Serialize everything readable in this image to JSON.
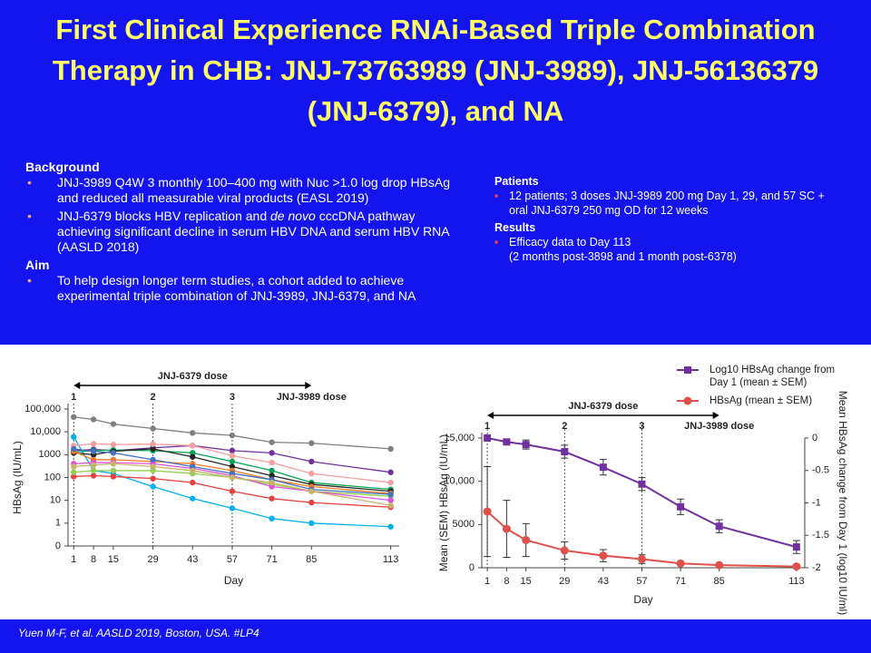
{
  "title": "First Clinical Experience RNAi-Based Triple Combination Therapy in CHB: JNJ-73763989 (JNJ-3989), JNJ-56136379 (JNJ-6379), and NA",
  "left_panel": [
    {
      "heading": "Background",
      "items": [
        [
          [
            "JNJ-3989 Q4W 3 monthly  100–400 mg with Nuc >1.0 log drop HBsAg"
          ],
          [
            "and reduced all measurable viral products (EASL 2019)"
          ]
        ],
        [
          [
            "JNJ-6379 blocks HBV replication and ",
            {
              "italic": "de novo"
            },
            " cccDNA pathway achieving significant decline in serum HBV DNA and serum HBV RNA (AASLD 2018)"
          ]
        ]
      ]
    },
    {
      "heading": "Aim",
      "items": [
        [
          [
            "To help design longer term studies, a cohort added to achieve experimental triple combination of JNJ-3989, JNJ-6379, and NA"
          ]
        ]
      ]
    }
  ],
  "right_panel": [
    {
      "heading": "Patients",
      "items": [
        [
          [
            "12 patients; 3 doses JNJ-3989 200 mg Day 1, 29, and 57 SC + oral JNJ-6379 250 mg OD for 12 weeks"
          ]
        ]
      ]
    },
    {
      "heading": "Results",
      "items": [
        [
          [
            "Efficacy data to Day 113"
          ],
          [
            "(2 months post-3898 and 1 month post-6378)"
          ]
        ]
      ]
    }
  ],
  "footer": "Yuen M-F,  et al. AASLD 2019, Boston, USA. #LP4",
  "chart_data": [
    {
      "type": "line",
      "x_label": "Day",
      "y_label": "HBsAg (IU/mL)",
      "yscale": "log",
      "x": [
        1,
        8,
        15,
        29,
        43,
        57,
        71,
        85,
        113
      ],
      "xlim": [
        -1,
        116
      ],
      "xticks": [
        1,
        8,
        15,
        29,
        43,
        57,
        71,
        85,
        113
      ],
      "ylim": [
        0.1,
        100000
      ],
      "yticks": [
        {
          "value": 0.1,
          "label": "0"
        },
        1,
        10,
        100,
        1000,
        {
          "value": 10000,
          "label": "10,000"
        },
        {
          "value": 100000,
          "label": "100,000"
        }
      ],
      "arrow_label": "JNJ-6379 dose",
      "arrow_x": [
        1,
        85
      ],
      "marker_label": "JNJ-3989 dose",
      "dose_markers": [
        {
          "label": "1",
          "x": 1
        },
        {
          "label": "2",
          "x": 29
        },
        {
          "label": "3",
          "x": 57
        }
      ],
      "series": [
        {
          "color": "#7f7f7f",
          "values": [
            45000,
            35000,
            22000,
            14000,
            9000,
            7000,
            3500,
            3200,
            1800
          ]
        },
        {
          "color": "#7030a0",
          "values": [
            1500,
            1700,
            1500,
            2000,
            2500,
            1500,
            1200,
            500,
            170
          ]
        },
        {
          "color": "#00b0f0",
          "values": [
            6000,
            200,
            150,
            40,
            12,
            4.5,
            1.6,
            1,
            0.7
          ]
        },
        {
          "color": "#e8403c",
          "values": [
            110,
            120,
            110,
            90,
            60,
            25,
            12,
            8,
            5
          ]
        },
        {
          "color": "#00a651",
          "values": [
            1300,
            1500,
            1600,
            1500,
            1200,
            500,
            200,
            60,
            30
          ]
        },
        {
          "color": "#262626",
          "values": [
            1200,
            1000,
            1400,
            1800,
            800,
            300,
            120,
            50,
            25
          ]
        },
        {
          "color": "#f4a0a0",
          "values": [
            2500,
            3000,
            2800,
            2900,
            2500,
            900,
            450,
            150,
            60
          ]
        },
        {
          "color": "#f47a20",
          "values": [
            1400,
            600,
            600,
            500,
            400,
            200,
            80,
            40,
            20
          ]
        },
        {
          "color": "#92d050",
          "values": [
            170,
            200,
            200,
            200,
            150,
            100,
            50,
            25,
            15
          ]
        },
        {
          "color": "#e050e0",
          "values": [
            400,
            450,
            450,
            400,
            250,
            120,
            40,
            25,
            10
          ]
        },
        {
          "color": "#4472c4",
          "values": [
            1800,
            1400,
            1200,
            600,
            300,
            150,
            80,
            30,
            18
          ]
        },
        {
          "color": "#c8b464",
          "values": [
            300,
            350,
            400,
            300,
            200,
            100,
            60,
            25,
            6
          ]
        }
      ]
    },
    {
      "type": "line",
      "x_label": "Day",
      "y_label": "Mean (SEM) HBsAg (IU/mL)",
      "y2_label": "Mean HBsAg change from Day 1 (log10 IU/ml)",
      "x": [
        1,
        8,
        15,
        29,
        43,
        57,
        71,
        85,
        113
      ],
      "xlim": [
        -1,
        116
      ],
      "xticks": [
        1,
        8,
        15,
        29,
        43,
        57,
        71,
        85,
        113
      ],
      "ylim": [
        0,
        15000
      ],
      "yticks": [
        0,
        5000,
        {
          "value": 10000,
          "label": "10,000"
        },
        {
          "value": 15000,
          "label": "15,000"
        }
      ],
      "y2lim": [
        -2,
        0
      ],
      "y2ticks": [
        0,
        -0.5,
        -1,
        -1.5,
        -2
      ],
      "arrow_label": "JNJ-6379 dose",
      "arrow_x": [
        1,
        85
      ],
      "marker_label": "JNJ-3989 dose",
      "dose_markers": [
        {
          "label": "1",
          "x": 1
        },
        {
          "label": "2",
          "x": 29
        },
        {
          "label": "3",
          "x": 57
        }
      ],
      "series": [
        {
          "name": "Log10 HBsAg change from Day 1 (mean ± SEM)",
          "color": "#7030a0",
          "marker": "square",
          "axis": "y2",
          "values": [
            0,
            -0.06,
            -0.1,
            -0.21,
            -0.45,
            -0.71,
            -1.06,
            -1.36,
            -1.68
          ],
          "errors": [
            0,
            0.02,
            0.07,
            0.1,
            0.12,
            0.1,
            0.12,
            0.1,
            0.1
          ]
        },
        {
          "name": "HBsAg (mean ± SEM)",
          "color": "#e0504a",
          "marker": "circle",
          "values": [
            6500,
            4500,
            3200,
            2000,
            1400,
            1000,
            500,
            300,
            150
          ],
          "errors": [
            5200,
            3300,
            1900,
            1000,
            700,
            500,
            200,
            100,
            50
          ]
        }
      ]
    }
  ]
}
